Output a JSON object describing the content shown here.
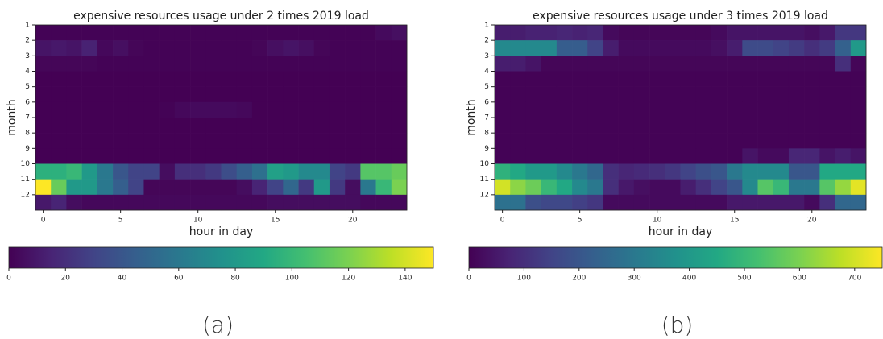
{
  "chart_data": [
    {
      "type": "heatmap",
      "title": "expensive resources usage under 2 times 2019 load",
      "x_label": "hour in day",
      "y_label": "month",
      "caption": "(a)",
      "colormap": "viridis",
      "x": [
        0,
        1,
        2,
        3,
        4,
        5,
        6,
        7,
        8,
        9,
        10,
        11,
        12,
        13,
        14,
        15,
        16,
        17,
        18,
        19,
        20,
        21,
        22,
        23
      ],
      "y": [
        1,
        2,
        3,
        4,
        5,
        6,
        7,
        8,
        9,
        10,
        11,
        12
      ],
      "xlim": [
        -0.5,
        23.5
      ],
      "ylim": [
        1,
        13
      ],
      "xticks": [
        0,
        5,
        10,
        15,
        20
      ],
      "yticks": [
        1,
        2,
        3,
        4,
        5,
        6,
        7,
        8,
        9,
        10,
        11,
        12
      ],
      "clim": [
        0,
        150
      ],
      "cticks": [
        0,
        20,
        40,
        60,
        80,
        100,
        120,
        140
      ],
      "z": [
        [
          1,
          1,
          1,
          1,
          1,
          1,
          1,
          1,
          1,
          1,
          1,
          1,
          1,
          1,
          1,
          1,
          1,
          1,
          1,
          1,
          1,
          1,
          4,
          6
        ],
        [
          8,
          10,
          8,
          14,
          3,
          6,
          2,
          1,
          1,
          1,
          1,
          1,
          1,
          1,
          2,
          6,
          8,
          6,
          2,
          1,
          1,
          1,
          1,
          1
        ],
        [
          2,
          2,
          2,
          2,
          1,
          1,
          1,
          1,
          1,
          1,
          1,
          1,
          1,
          1,
          1,
          1,
          1,
          1,
          1,
          1,
          1,
          1,
          1,
          1
        ],
        [
          0,
          0,
          0,
          0,
          0,
          0,
          0,
          0,
          0,
          0,
          0,
          0,
          0,
          0,
          0,
          0,
          0,
          0,
          0,
          0,
          0,
          0,
          0,
          0
        ],
        [
          0,
          0,
          0,
          0,
          0,
          0,
          0,
          0,
          0,
          0,
          0,
          0,
          0,
          0,
          0,
          0,
          0,
          0,
          0,
          0,
          0,
          0,
          0,
          0
        ],
        [
          0,
          0,
          0,
          0,
          0,
          0,
          0,
          0,
          1,
          3,
          4,
          4,
          4,
          3,
          0,
          0,
          0,
          0,
          0,
          0,
          0,
          0,
          0,
          0
        ],
        [
          0,
          0,
          0,
          0,
          0,
          0,
          0,
          0,
          0,
          0,
          0,
          0,
          0,
          0,
          0,
          0,
          0,
          0,
          0,
          0,
          0,
          0,
          0,
          0
        ],
        [
          0,
          0,
          0,
          0,
          0,
          0,
          0,
          0,
          0,
          0,
          0,
          0,
          0,
          0,
          0,
          0,
          0,
          0,
          0,
          0,
          0,
          0,
          0,
          0
        ],
        [
          0,
          0,
          0,
          0,
          0,
          0,
          0,
          0,
          0,
          0,
          0,
          0,
          0,
          0,
          0,
          0,
          0,
          0,
          0,
          0,
          0,
          0,
          0,
          0
        ],
        [
          95,
          95,
          100,
          80,
          60,
          40,
          30,
          30,
          5,
          20,
          20,
          25,
          35,
          45,
          55,
          85,
          80,
          70,
          70,
          30,
          25,
          110,
          110,
          115
        ],
        [
          150,
          115,
          80,
          80,
          60,
          45,
          30,
          2,
          2,
          2,
          2,
          2,
          2,
          5,
          15,
          30,
          50,
          25,
          80,
          25,
          5,
          60,
          100,
          120
        ],
        [
          10,
          15,
          5,
          3,
          3,
          3,
          3,
          3,
          3,
          3,
          3,
          3,
          3,
          3,
          3,
          5,
          5,
          5,
          5,
          5,
          5,
          3,
          3,
          3
        ]
      ]
    },
    {
      "type": "heatmap",
      "title": "expensive resources usage under 3 times 2019 load",
      "x_label": "hour in day",
      "y_label": "month",
      "caption": "(b)",
      "colormap": "viridis",
      "x": [
        0,
        1,
        2,
        3,
        4,
        5,
        6,
        7,
        8,
        9,
        10,
        11,
        12,
        13,
        14,
        15,
        16,
        17,
        18,
        19,
        20,
        21,
        22,
        23
      ],
      "y": [
        1,
        2,
        3,
        4,
        5,
        6,
        7,
        8,
        9,
        10,
        11,
        12
      ],
      "xlim": [
        -0.5,
        23.5
      ],
      "ylim": [
        1,
        13
      ],
      "xticks": [
        0,
        5,
        10,
        15,
        20
      ],
      "yticks": [
        1,
        2,
        3,
        4,
        5,
        6,
        7,
        8,
        9,
        10,
        11,
        12
      ],
      "clim": [
        0,
        750
      ],
      "cticks": [
        0,
        100,
        200,
        300,
        400,
        500,
        600,
        700
      ],
      "z": [
        [
          60,
          60,
          70,
          70,
          80,
          70,
          80,
          20,
          10,
          10,
          10,
          10,
          10,
          10,
          20,
          40,
          40,
          40,
          40,
          40,
          30,
          50,
          120,
          120
        ],
        [
          350,
          350,
          350,
          350,
          220,
          220,
          150,
          60,
          20,
          20,
          20,
          20,
          20,
          20,
          30,
          60,
          170,
          170,
          150,
          130,
          100,
          130,
          230,
          400
        ],
        [
          60,
          60,
          40,
          10,
          10,
          10,
          10,
          10,
          10,
          10,
          10,
          10,
          10,
          10,
          10,
          10,
          10,
          10,
          10,
          10,
          10,
          10,
          100,
          10
        ],
        [
          5,
          5,
          5,
          5,
          5,
          5,
          5,
          5,
          5,
          5,
          5,
          5,
          5,
          5,
          5,
          5,
          5,
          5,
          5,
          5,
          5,
          5,
          5,
          5
        ],
        [
          5,
          5,
          5,
          5,
          5,
          5,
          5,
          5,
          5,
          5,
          5,
          5,
          5,
          5,
          5,
          5,
          5,
          5,
          5,
          5,
          5,
          5,
          5,
          5
        ],
        [
          5,
          5,
          5,
          5,
          5,
          5,
          5,
          5,
          5,
          5,
          5,
          5,
          5,
          5,
          5,
          5,
          5,
          5,
          5,
          5,
          5,
          5,
          5,
          5
        ],
        [
          5,
          5,
          5,
          5,
          5,
          5,
          5,
          5,
          5,
          5,
          5,
          5,
          5,
          5,
          5,
          5,
          5,
          5,
          5,
          5,
          5,
          5,
          5,
          5
        ],
        [
          5,
          5,
          5,
          5,
          5,
          5,
          5,
          5,
          5,
          5,
          5,
          5,
          5,
          5,
          5,
          5,
          5,
          5,
          5,
          5,
          5,
          5,
          5,
          5
        ],
        [
          5,
          5,
          5,
          5,
          5,
          5,
          5,
          5,
          5,
          5,
          5,
          5,
          5,
          5,
          5,
          5,
          40,
          20,
          20,
          80,
          80,
          40,
          60,
          40
        ],
        [
          480,
          450,
          400,
          400,
          350,
          300,
          250,
          100,
          80,
          90,
          100,
          120,
          150,
          180,
          200,
          300,
          350,
          350,
          350,
          200,
          200,
          450,
          450,
          450
        ],
        [
          700,
          620,
          580,
          500,
          450,
          350,
          300,
          100,
          50,
          30,
          20,
          20,
          60,
          100,
          150,
          200,
          350,
          550,
          500,
          300,
          300,
          550,
          630,
          720
        ],
        [
          280,
          280,
          180,
          160,
          160,
          140,
          120,
          20,
          20,
          20,
          20,
          20,
          20,
          20,
          20,
          50,
          50,
          50,
          50,
          50,
          20,
          100,
          250,
          250
        ]
      ]
    }
  ]
}
